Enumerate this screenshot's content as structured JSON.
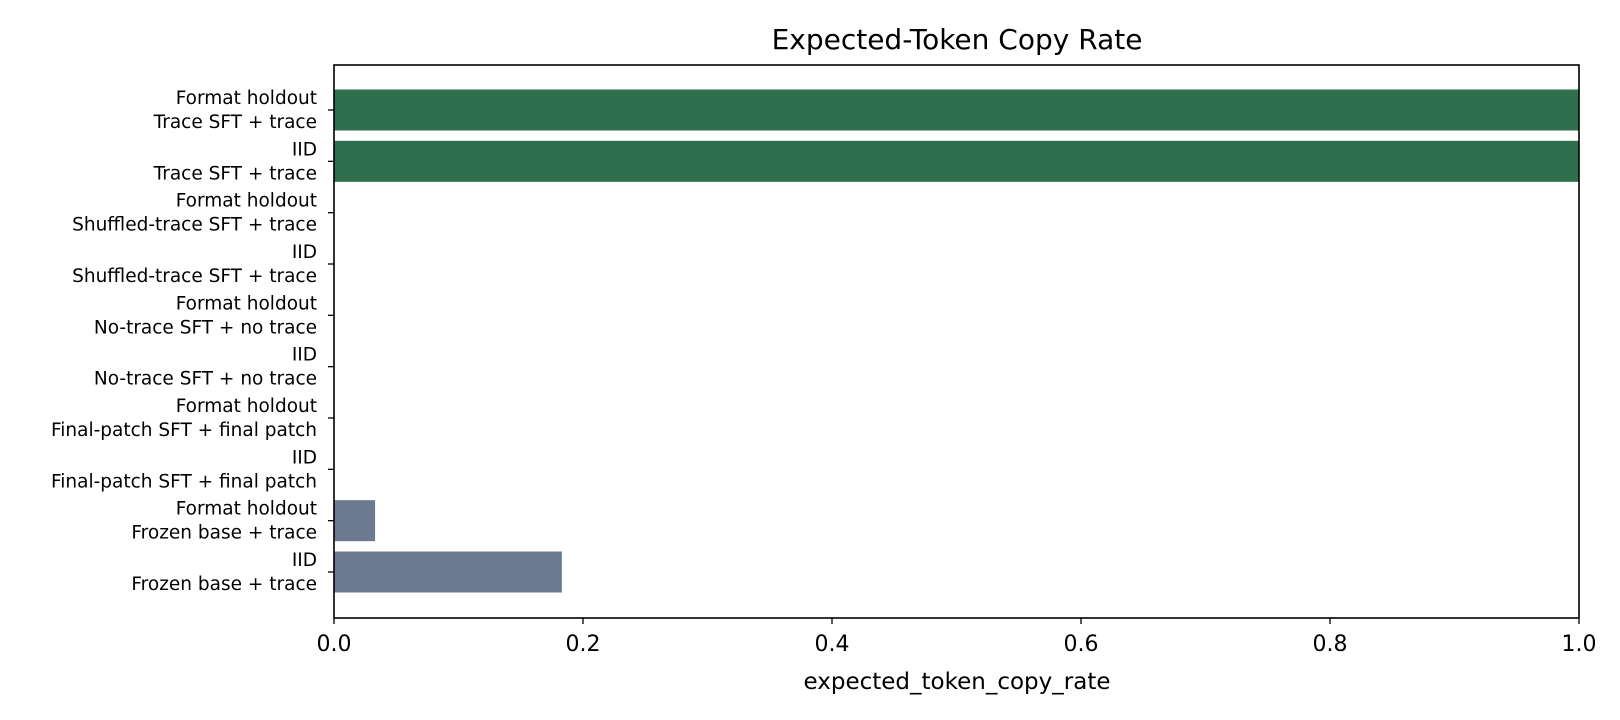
{
  "chart_data": {
    "type": "bar",
    "orientation": "horizontal",
    "title": "Expected-Token Copy Rate",
    "xlabel": "expected_token_copy_rate",
    "ylabel": "",
    "xlim": [
      0.0,
      1.0
    ],
    "xticks": [
      "0.0",
      "0.2",
      "0.4",
      "0.6",
      "0.8",
      "1.0"
    ],
    "grid": false,
    "categories": [
      {
        "line1": "Format holdout",
        "line2": "Trace SFT + trace",
        "value": 1.0,
        "color": "#2f6f4e"
      },
      {
        "line1": "IID",
        "line2": "Trace SFT + trace",
        "value": 1.0,
        "color": "#2f6f4e"
      },
      {
        "line1": "Format holdout",
        "line2": "Shuffled-trace SFT + trace",
        "value": 0.0,
        "color": "#6b7a90"
      },
      {
        "line1": "IID",
        "line2": "Shuffled-trace SFT + trace",
        "value": 0.0,
        "color": "#6b7a90"
      },
      {
        "line1": "Format holdout",
        "line2": "No-trace SFT + no trace",
        "value": 0.0,
        "color": "#6b7a90"
      },
      {
        "line1": "IID",
        "line2": "No-trace SFT + no trace",
        "value": 0.0,
        "color": "#6b7a90"
      },
      {
        "line1": "Format holdout",
        "line2": "Final-patch SFT + final patch",
        "value": 0.0,
        "color": "#6b7a90"
      },
      {
        "line1": "IID",
        "line2": "Final-patch SFT + final patch",
        "value": 0.0,
        "color": "#6b7a90"
      },
      {
        "line1": "Format holdout",
        "line2": "Frozen base + trace",
        "value": 0.033,
        "color": "#6b7a90"
      },
      {
        "line1": "IID",
        "line2": "Frozen base + trace",
        "value": 0.183,
        "color": "#6b7a90"
      }
    ]
  }
}
